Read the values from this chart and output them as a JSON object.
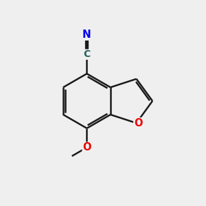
{
  "bg_color": "#efefef",
  "bond_color": "#1a1a1a",
  "N_color": "#0000ee",
  "O_color": "#ee0000",
  "C_color": "#2a6060",
  "text_N": "N",
  "text_C": "C",
  "text_O": "O",
  "line_width": 1.8,
  "fig_width": 3.0,
  "fig_height": 3.0,
  "dpi": 100
}
